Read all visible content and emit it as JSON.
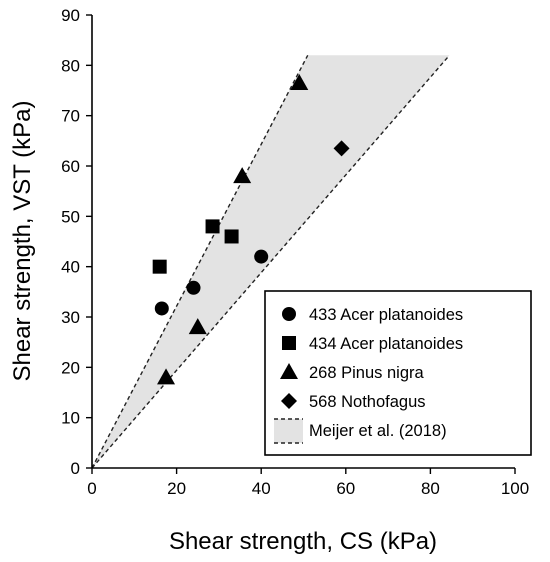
{
  "chart_data": {
    "type": "scatter",
    "title": "",
    "xlabel": "Shear strength, CS (kPa)",
    "ylabel": "Shear strength, VST (kPa)",
    "xlim": [
      0,
      100
    ],
    "ylim": [
      0,
      90
    ],
    "xticks": [
      0,
      20,
      40,
      60,
      80,
      100
    ],
    "yticks": [
      0,
      10,
      20,
      30,
      40,
      50,
      60,
      70,
      80,
      90
    ],
    "grid": false,
    "legend_position": "bottom-right",
    "series": [
      {
        "name": "433 Acer platanoides",
        "marker": "circle",
        "x": [
          16.5,
          24,
          40
        ],
        "y": [
          31.7,
          35.8,
          42
        ]
      },
      {
        "name": "434 Acer platanoides",
        "marker": "square",
        "x": [
          16,
          28.5,
          33
        ],
        "y": [
          40,
          48,
          46
        ]
      },
      {
        "name": "268 Pinus nigra",
        "marker": "triangle",
        "x": [
          17.5,
          25,
          35.5,
          49
        ],
        "y": [
          18,
          28,
          58,
          76.5
        ]
      },
      {
        "name": "568 Nothofagus",
        "marker": "diamond",
        "x": [
          59
        ],
        "y": [
          63.5
        ]
      }
    ],
    "band": {
      "name": "Meijer et al. (2018)",
      "fill": "#e3e3e3",
      "upper_line": {
        "x": [
          0,
          51
        ],
        "y": [
          0,
          82
        ]
      },
      "lower_line": {
        "x": [
          0,
          84.5
        ],
        "y": [
          0,
          82
        ]
      }
    }
  }
}
